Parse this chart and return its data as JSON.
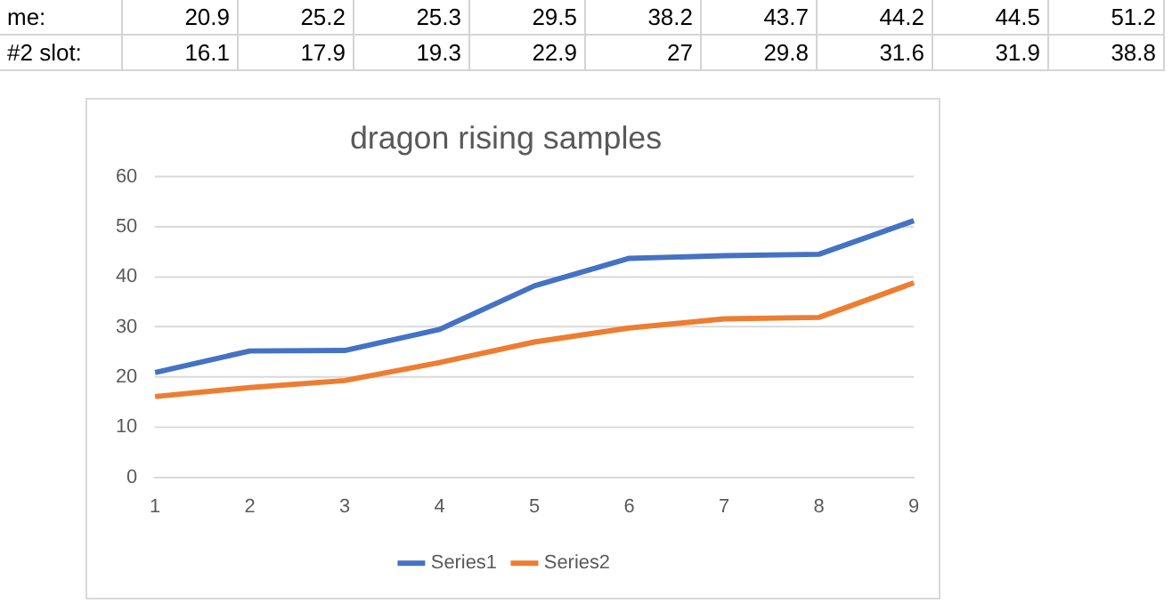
{
  "chart_data": [
    {
      "type": "other",
      "annotations": [
        "me:",
        "20.9",
        "25.2",
        "25.3",
        "29.5",
        "38.2",
        "43.7",
        "44.2",
        "44.5",
        "51.2",
        "#2 slot:",
        "16.1",
        "17.9",
        "19.3",
        "22.9",
        "27",
        "29.8",
        "31.6",
        "31.9",
        "38.8"
      ]
    },
    {
      "type": "line",
      "title": "dragon rising samples",
      "categories": [
        "1",
        "2",
        "3",
        "4",
        "5",
        "6",
        "7",
        "8",
        "9"
      ],
      "series": [
        {
          "name": "Series1",
          "color": "#4472c4",
          "values": [
            20.9,
            25.2,
            25.3,
            29.5,
            38.2,
            43.7,
            44.2,
            44.5,
            51.2
          ]
        },
        {
          "name": "Series2",
          "color": "#ed7d31",
          "values": [
            16.1,
            17.9,
            19.3,
            22.9,
            27,
            29.8,
            31.6,
            31.9,
            38.8
          ]
        }
      ],
      "ylim": [
        0,
        60
      ],
      "yticks": [
        0,
        10,
        20,
        30,
        40,
        50,
        60
      ],
      "grid": "y",
      "legend": "bottom",
      "marker": "none",
      "line_style": "solid"
    }
  ]
}
